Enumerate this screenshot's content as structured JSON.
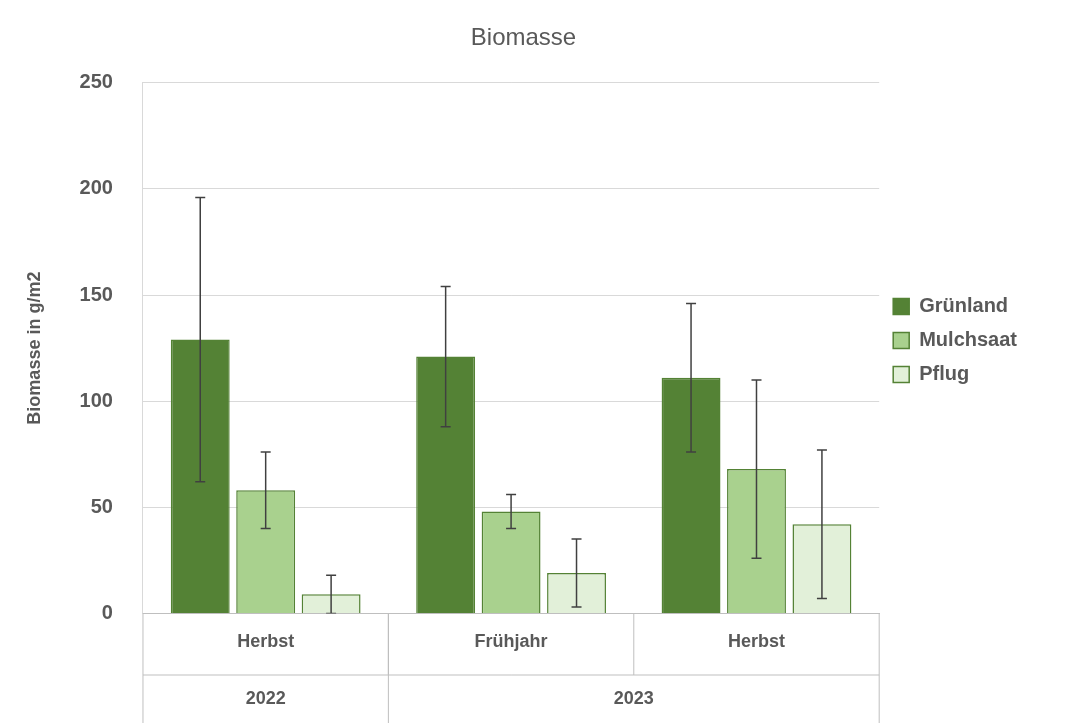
{
  "chart_data": {
    "type": "bar",
    "title": "Biomasse",
    "y_label": "Biomasse in g/m2",
    "categories": [
      "Herbst",
      "Frühjahr",
      "Herbst"
    ],
    "category_groups": [
      {
        "label": "2022",
        "count": 1
      },
      {
        "label": "2023",
        "count": 2
      }
    ],
    "series": [
      {
        "name": "Grünland",
        "color": "#548235",
        "values": [
          129,
          121,
          111
        ],
        "errors": [
          67,
          33,
          35
        ]
      },
      {
        "name": "Mulchsaat",
        "color": "#a9d18e",
        "values": [
          58,
          48,
          68
        ],
        "errors": [
          18,
          8,
          42
        ]
      },
      {
        "name": "Pflug",
        "color": "#e2f0d9",
        "values": [
          9,
          19,
          42
        ],
        "errors": [
          9,
          16,
          35
        ]
      }
    ],
    "ylim": [
      0,
      250
    ],
    "yticks": [
      0,
      50,
      100,
      150,
      200,
      250
    ],
    "grid": true,
    "legend": "right"
  }
}
